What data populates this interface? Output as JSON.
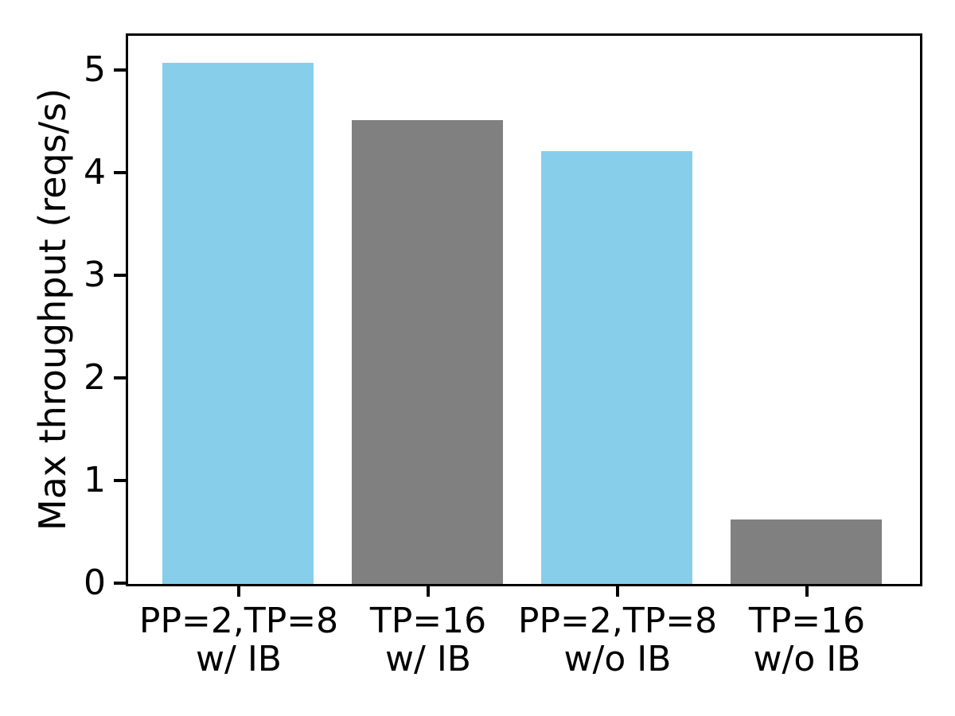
{
  "chart_data": {
    "type": "bar",
    "categories": [
      "PP=2,TP=8\nw/ IB",
      "TP=16\nw/ IB",
      "PP=2,TP=8\nw/o IB",
      "TP=16\nw/o IB"
    ],
    "values": [
      5.08,
      4.52,
      4.22,
      0.63
    ],
    "bar_colors": [
      "#87ceeb",
      "#808080",
      "#87ceeb",
      "#808080"
    ],
    "title": "",
    "xlabel": "",
    "ylabel": "Max throughput (reqs/s)",
    "yticks": [
      0,
      1,
      2,
      3,
      4,
      5
    ],
    "ylim": [
      0,
      5.34
    ],
    "grid": false,
    "legend": null,
    "bar_width_fraction": 0.8
  },
  "colors": {
    "bar_blue": "#87ceeb",
    "bar_gray": "#808080",
    "axis": "#000000",
    "background": "#ffffff"
  }
}
